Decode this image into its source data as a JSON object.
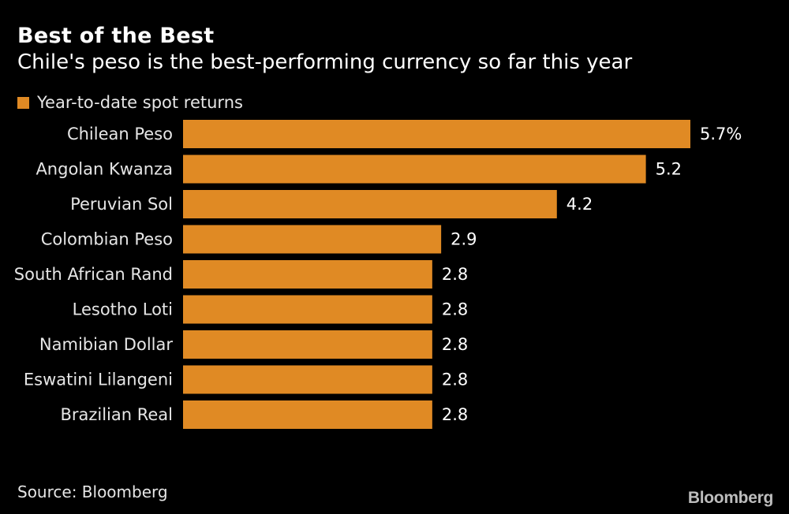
{
  "chart_data": {
    "type": "bar",
    "orientation": "horizontal",
    "title": "Best of the Best",
    "subtitle": "Chile's peso is the best-performing currency so far this year",
    "legend": [
      "Year-to-date spot returns"
    ],
    "legend_position": "top-left",
    "categories": [
      "Chilean Peso",
      "Angolan Kwanza",
      "Peruvian Sol",
      "Colombian Peso",
      "South African Rand",
      "Lesotho Loti",
      "Namibian Dollar",
      "Eswatini Lilangeni",
      "Brazilian Real"
    ],
    "series": [
      {
        "name": "Year-to-date spot returns",
        "values": [
          5.7,
          5.2,
          4.2,
          2.9,
          2.8,
          2.8,
          2.8,
          2.8,
          2.8
        ]
      }
    ],
    "data_labels": [
      "5.7%",
      "5.2",
      "4.2",
      "2.9",
      "2.8",
      "2.8",
      "2.8",
      "2.8",
      "2.8"
    ],
    "xlim": [
      0,
      5.7
    ],
    "grid": false,
    "colors": {
      "bar": "#E08A24",
      "background": "#000000",
      "text": "#FFFFFF"
    }
  },
  "footer": {
    "source": "Source: Bloomberg",
    "logo": "Bloomberg"
  }
}
